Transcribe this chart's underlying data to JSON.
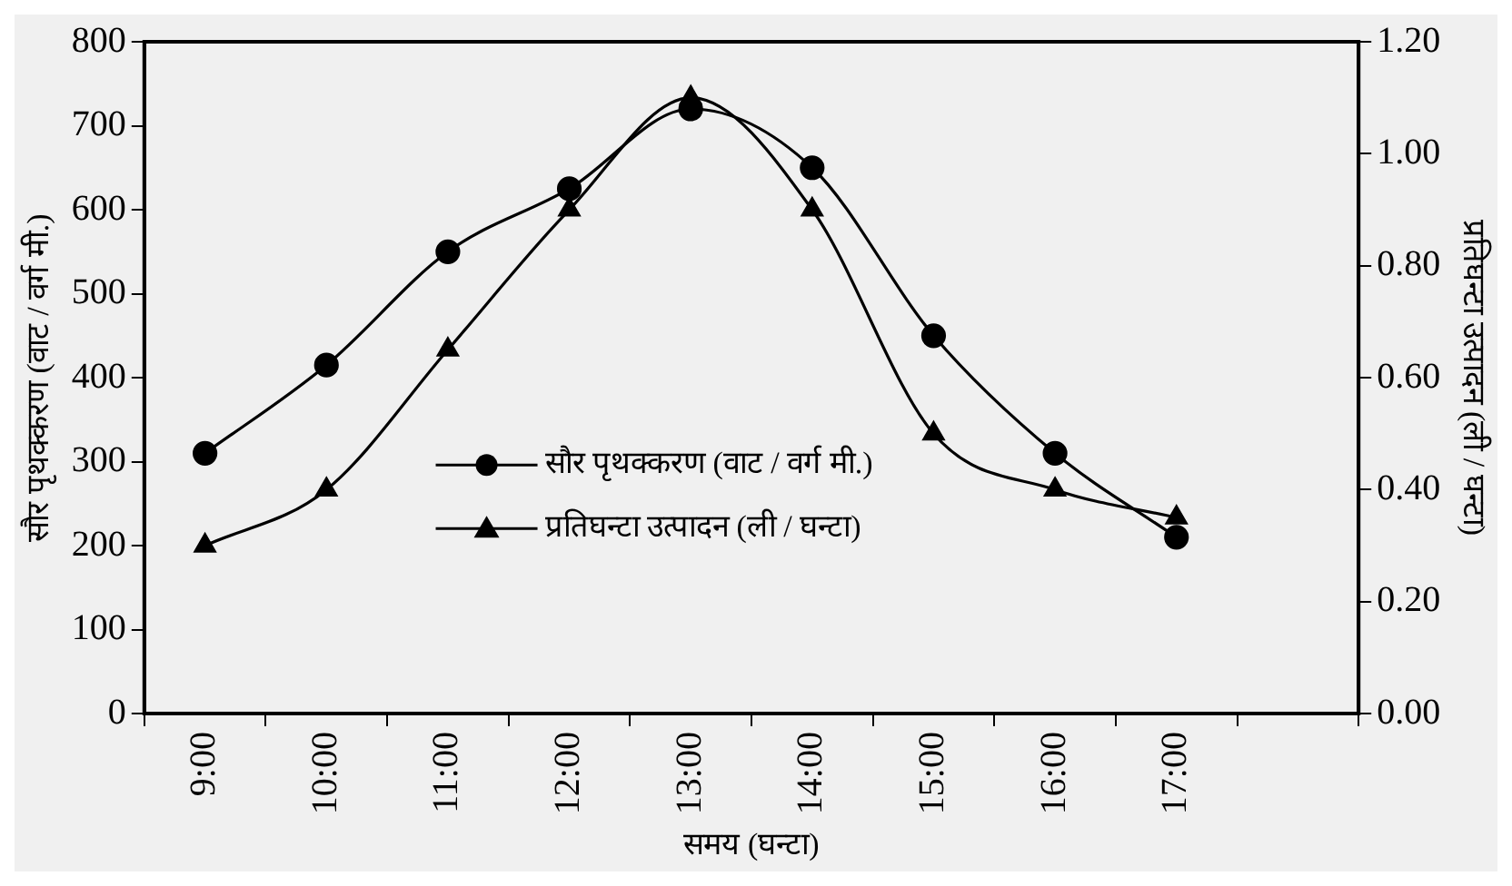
{
  "chart_data": {
    "type": "line",
    "xlabel": "समय (घन्टा)",
    "ylabel": "सौर पृथक्करण (वाट / वर्ग मी.)",
    "y2label": "प्रतिघन्टा उत्पादन (ली / घन्टा)",
    "categories": [
      "9:00",
      "10:00",
      "11:00",
      "12:00",
      "13:00",
      "14:00",
      "15:00",
      "16:00",
      "17:00",
      null
    ],
    "series": [
      {
        "name": "सौर पृथक्करण (वाट / वर्ग मी.)",
        "color": "#000000",
        "marker": "circle",
        "values": [
          310,
          415,
          550,
          625,
          720,
          650,
          450,
          310,
          210,
          null
        ]
      },
      {
        "name": "प्रतिघन्टा उत्पादन (ली / घन्टा)",
        "color": "#000000",
        "marker": "triangle",
        "axis": "y2",
        "values": [
          0.3,
          0.4,
          0.65,
          0.9,
          1.1,
          0.9,
          0.5,
          0.4,
          0.35,
          null
        ]
      }
    ],
    "ylim": [
      0,
      800
    ],
    "yticks": [
      0,
      100,
      200,
      300,
      400,
      500,
      600,
      700,
      800
    ],
    "y2lim": [
      0,
      1.2
    ],
    "y2ticks": [
      {
        "value": 0,
        "label": "0.00"
      },
      {
        "value": 0.2,
        "label": "0.20"
      },
      {
        "value": 0.4,
        "label": "0.40"
      },
      {
        "value": 0.6,
        "label": "0.60"
      },
      {
        "value": 0.8,
        "label": "0.80"
      },
      {
        "value": 1,
        "label": "1.00"
      },
      {
        "value": 1.2,
        "label": "1.20"
      }
    ],
    "grid": false,
    "legend": "center",
    "line_style": "solid"
  }
}
